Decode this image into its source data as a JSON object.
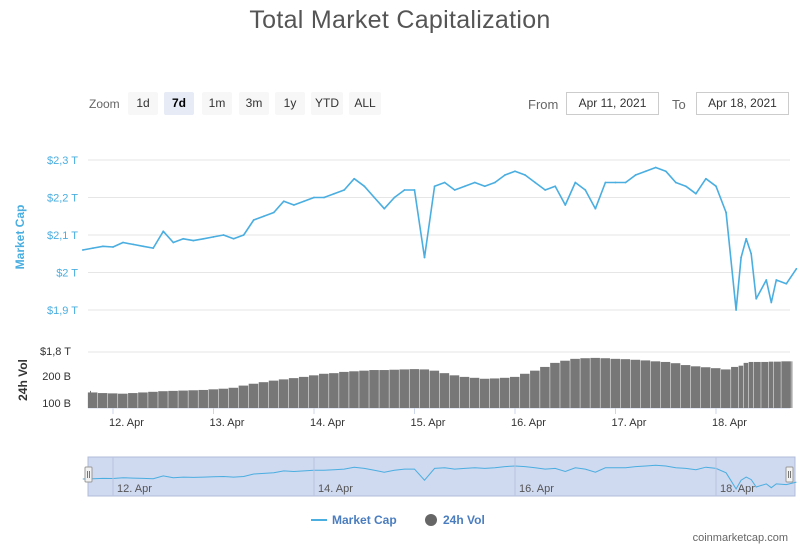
{
  "title": "Total Market Capitalization",
  "zoom": {
    "label": "Zoom",
    "buttons": [
      "1d",
      "7d",
      "1m",
      "3m",
      "1y",
      "YTD",
      "ALL"
    ],
    "selected": "7d"
  },
  "range": {
    "from_label": "From",
    "from_value": "Apr 11, 2021",
    "to_label": "To",
    "to_value": "Apr 18, 2021"
  },
  "watermark": "coinmarketcap.com",
  "colors": {
    "market_cap": "#4aaee0",
    "volume": "#777777",
    "navigator_bg": "#cfd9f0"
  },
  "chart_data": {
    "type": "line",
    "title": "Total Market Capitalization",
    "x_ticks": [
      "12. Apr",
      "13. Apr",
      "14. Apr",
      "15. Apr",
      "16. Apr",
      "17. Apr",
      "18. Apr"
    ],
    "x": [
      11.7,
      11.8,
      11.9,
      12.0,
      12.1,
      12.2,
      12.3,
      12.4,
      12.5,
      12.6,
      12.7,
      12.8,
      12.9,
      13.0,
      13.1,
      13.2,
      13.3,
      13.4,
      13.5,
      13.6,
      13.7,
      13.8,
      13.9,
      14.0,
      14.1,
      14.2,
      14.3,
      14.4,
      14.5,
      14.6,
      14.7,
      14.8,
      14.9,
      15.0,
      15.1,
      15.2,
      15.3,
      15.4,
      15.5,
      15.6,
      15.7,
      15.8,
      15.9,
      16.0,
      16.1,
      16.2,
      16.3,
      16.4,
      16.5,
      16.6,
      16.7,
      16.8,
      16.9,
      17.0,
      17.1,
      17.2,
      17.3,
      17.4,
      17.5,
      17.6,
      17.7,
      17.8,
      17.9,
      18.0,
      18.1,
      18.2,
      18.25,
      18.3,
      18.35,
      18.4,
      18.5,
      18.55,
      18.6,
      18.7,
      18.8
    ],
    "series": [
      {
        "name": "Market Cap",
        "axis": "Market Cap",
        "values": [
          2.06,
          2.065,
          2.07,
          2.068,
          2.08,
          2.075,
          2.07,
          2.065,
          2.11,
          2.08,
          2.09,
          2.085,
          2.09,
          2.095,
          2.1,
          2.09,
          2.1,
          2.14,
          2.15,
          2.16,
          2.19,
          2.18,
          2.19,
          2.2,
          2.2,
          2.21,
          2.22,
          2.25,
          2.23,
          2.2,
          2.17,
          2.2,
          2.22,
          2.22,
          2.04,
          2.23,
          2.24,
          2.22,
          2.23,
          2.24,
          2.23,
          2.24,
          2.26,
          2.27,
          2.26,
          2.24,
          2.22,
          2.23,
          2.18,
          2.24,
          2.22,
          2.17,
          2.24,
          2.24,
          2.24,
          2.26,
          2.27,
          2.28,
          2.27,
          2.24,
          2.23,
          2.21,
          2.25,
          2.23,
          2.16,
          1.9,
          2.04,
          2.09,
          2.05,
          1.93,
          1.98,
          1.92,
          1.98,
          1.97,
          2.01
        ]
      },
      {
        "name": "24h Vol",
        "axis": "24h Vol",
        "values": [
          155,
          150,
          148,
          147,
          146,
          148,
          150,
          152,
          154,
          155,
          156,
          157,
          158,
          160,
          162,
          165,
          172,
          178,
          183,
          188,
          192,
          196,
          200,
          205,
          210,
          212,
          216,
          218,
          220,
          222,
          222,
          223,
          224,
          225,
          224,
          220,
          212,
          205,
          200,
          197,
          194,
          195,
          197,
          200,
          210,
          220,
          232,
          245,
          252,
          258,
          260,
          261,
          260,
          258,
          257,
          255,
          253,
          250,
          248,
          244,
          238,
          234,
          231,
          228,
          224,
          232,
          236,
          245,
          248,
          248,
          248,
          249,
          249,
          250,
          250
        ]
      }
    ],
    "y_axes": [
      {
        "name": "Market Cap",
        "label": "Market Cap",
        "ticks": [
          "$1,9 T",
          "$2 T",
          "$2,1 T",
          "$2,2 T",
          "$2,3 T"
        ],
        "tick_values": [
          1.9,
          2.0,
          2.1,
          2.2,
          2.3
        ],
        "range": [
          1.87,
          2.33
        ]
      },
      {
        "name": "24h Vol",
        "label": "24h Vol",
        "ticks": [
          "100 B",
          "200 B",
          "$1,8 T"
        ],
        "range": [
          100,
          280
        ]
      }
    ],
    "navigator": {
      "x_ticks": [
        "12. Apr",
        "14. Apr",
        "16. Apr",
        "18. Apr"
      ]
    },
    "legend": {
      "position": "bottom-center",
      "items": [
        "Market Cap",
        "24h Vol"
      ]
    },
    "grid": true
  }
}
